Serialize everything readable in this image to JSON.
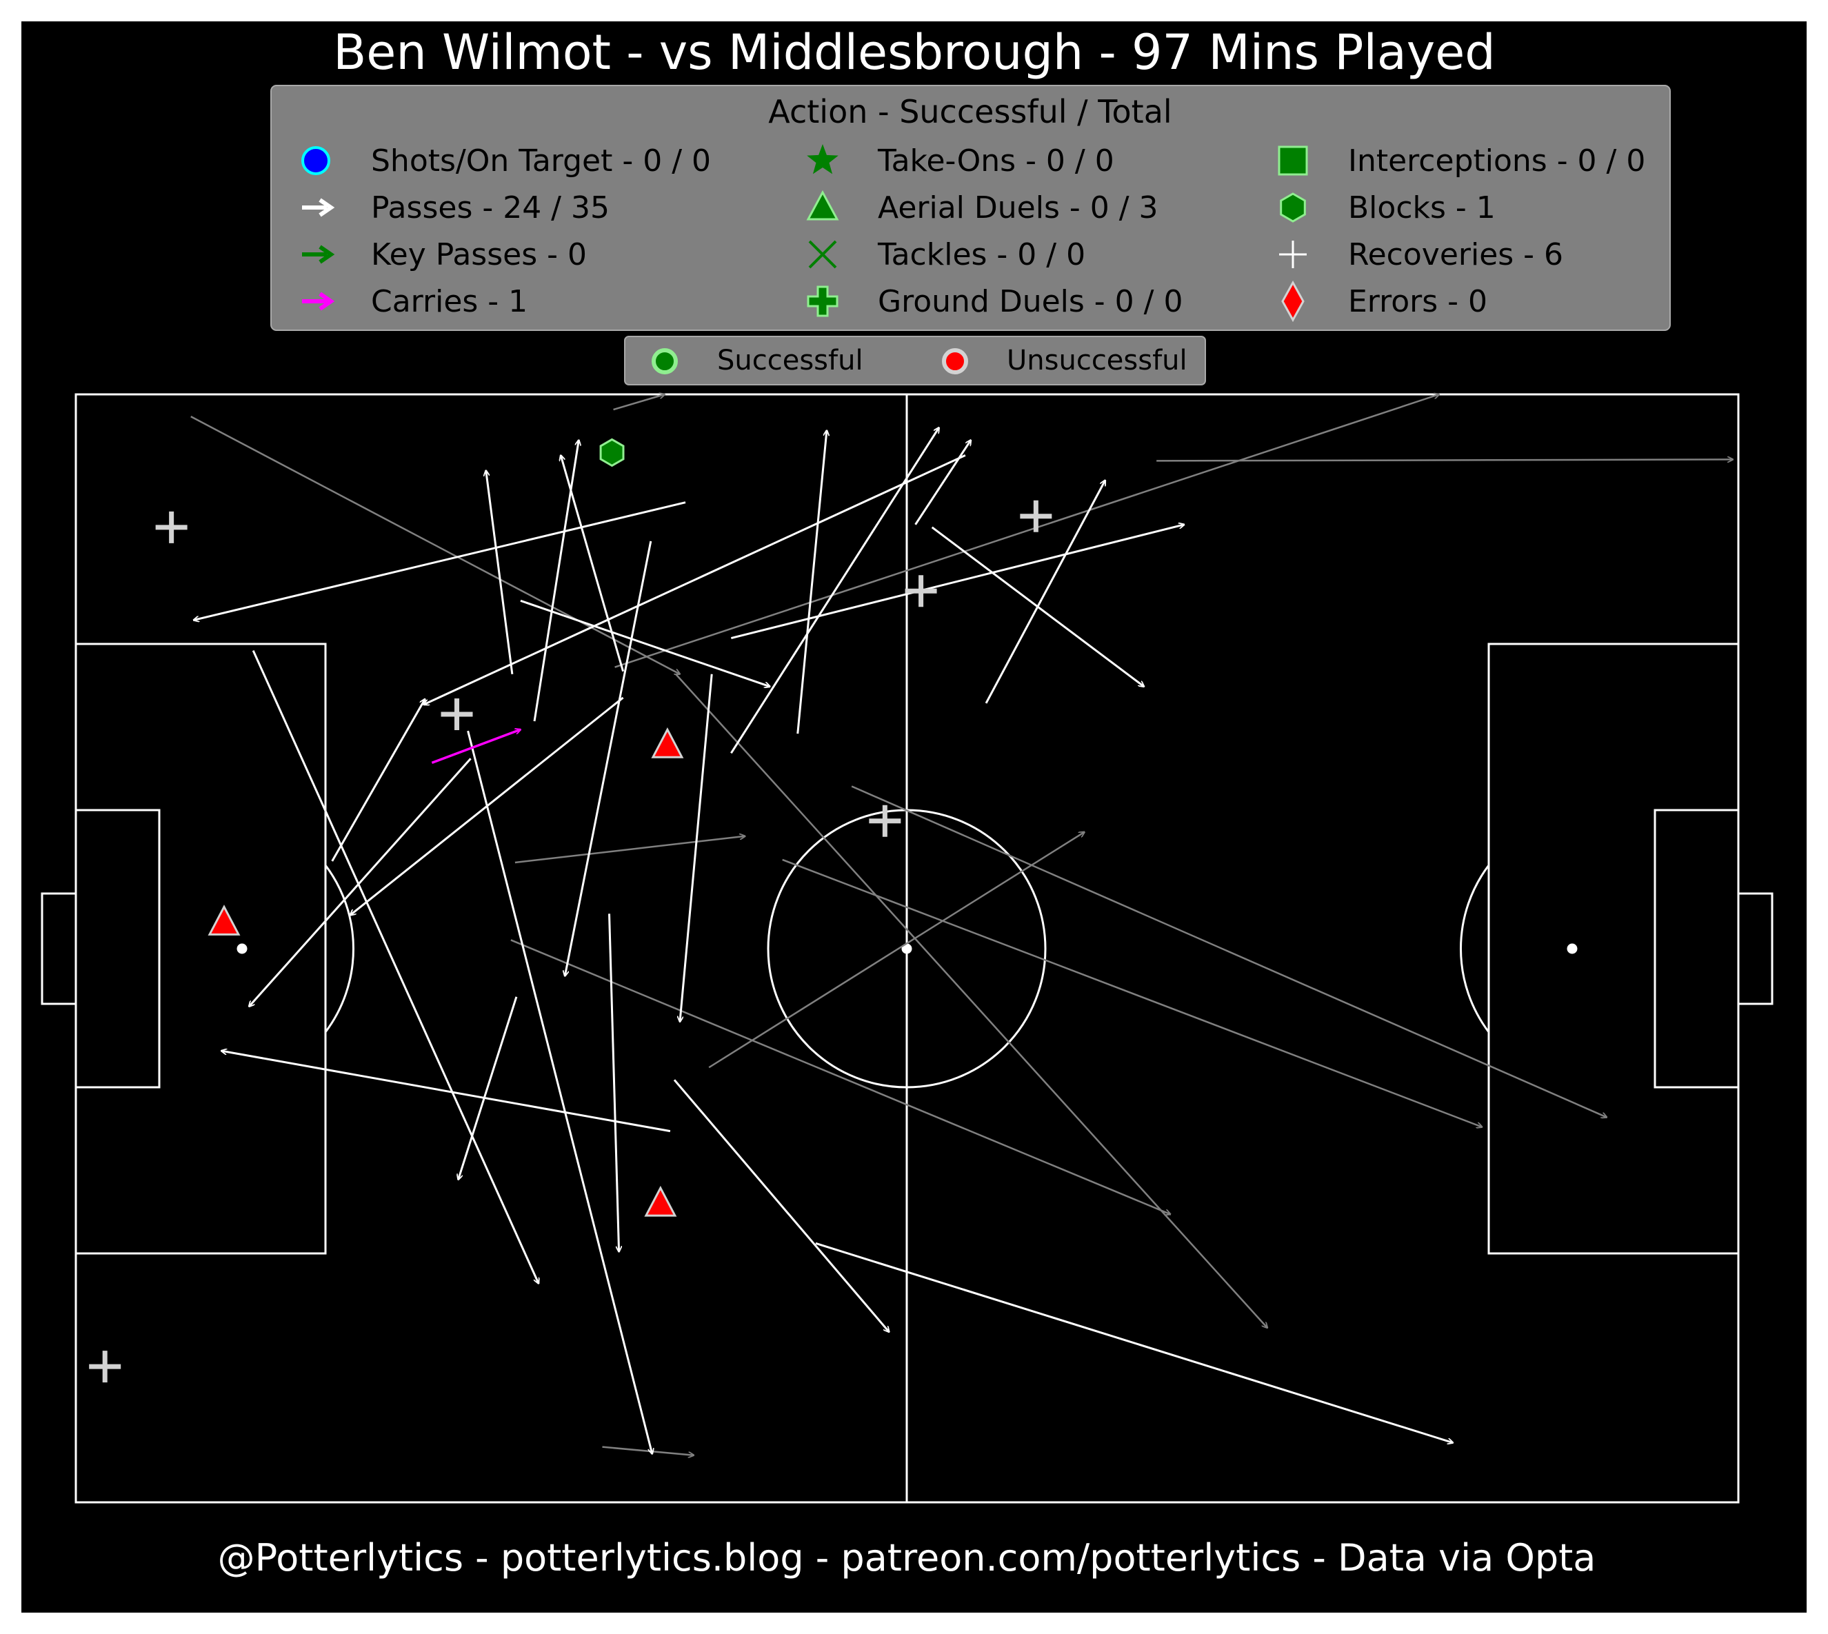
{
  "chart_data": {
    "type": "scatter",
    "title": "Ben Wilmot - vs Middlesbrough - 97 Mins Played",
    "footer": "@Potterlytics - potterlytics.blog - patreon.com/potterlytics - Data via Opta",
    "legend": {
      "title": "Action - Successful / Total",
      "items": [
        {
          "key": "shots",
          "label": "Shots/On Target - 0 / 0",
          "icon": "circle-icon",
          "color": "#0000ff"
        },
        {
          "key": "passes",
          "label": "Passes - 24 / 35",
          "icon": "arrow-icon",
          "color": "#ffffff"
        },
        {
          "key": "key_passes",
          "label": "Key Passes - 0",
          "icon": "arrow-icon",
          "color": "#008000"
        },
        {
          "key": "carries",
          "label": "Carries - 1",
          "icon": "arrow-icon",
          "color": "#ff00ff"
        },
        {
          "key": "take_ons",
          "label": "Take-Ons - 0 / 0",
          "icon": "star-icon",
          "color": "#008000"
        },
        {
          "key": "aerial_duels",
          "label": "Aerial Duels - 0 / 3",
          "icon": "triangle-icon",
          "color": "#008000"
        },
        {
          "key": "tackles",
          "label": "Tackles - 0 / 0",
          "icon": "x-icon",
          "color": "#008000"
        },
        {
          "key": "ground_duels",
          "label": "Ground Duels - 0 / 0",
          "icon": "plus-icon",
          "color": "#008000"
        },
        {
          "key": "interceptions",
          "label": "Interceptions - 0 / 0",
          "icon": "square-icon",
          "color": "#008000"
        },
        {
          "key": "blocks",
          "label": "Blocks - 1",
          "icon": "hexagon-icon",
          "color": "#008000"
        },
        {
          "key": "recoveries",
          "label": "Recoveries - 6",
          "icon": "thin-plus-icon",
          "color": "#ffffff"
        },
        {
          "key": "errors",
          "label": "Errors - 0",
          "icon": "diamond-icon",
          "color": "#ff0000"
        }
      ],
      "outcome_items": [
        {
          "key": "successful",
          "label": "Successful",
          "fill": "#008000",
          "edge": "#90ee90"
        },
        {
          "key": "unsuccessful",
          "label": "Unsuccessful",
          "fill": "#ff0000",
          "edge": "#d3d3d3"
        }
      ]
    },
    "pitch": {
      "length": 120,
      "width": 80
    },
    "colors": {
      "background": "#000000",
      "pitch_lines": "#ffffff",
      "legend_box": "#808080",
      "pass_successful": "#ffffff",
      "pass_unsuccessful": "#808080",
      "carry": "#ff00ff",
      "recovery": "#d3d3d3",
      "aerial_fill": "#ff0000",
      "block_fill": "#008000"
    },
    "passes_successful": [
      {
        "x1": 44.0,
        "y1": 7.8,
        "x2": 8.5,
        "y2": 16.3
      },
      {
        "x1": 64.2,
        "y1": 4.4,
        "x2": 25.1,
        "y2": 22.4
      },
      {
        "x1": 41.5,
        "y1": 10.6,
        "x2": 35.3,
        "y2": 42.0
      },
      {
        "x1": 31.5,
        "y1": 20.2,
        "x2": 29.6,
        "y2": 5.5
      },
      {
        "x1": 33.1,
        "y1": 23.6,
        "x2": 36.3,
        "y2": 3.3
      },
      {
        "x1": 39.5,
        "y1": 20.0,
        "x2": 35.0,
        "y2": 4.4
      },
      {
        "x1": 32.1,
        "y1": 14.9,
        "x2": 50.1,
        "y2": 21.1
      },
      {
        "x1": 52.1,
        "y1": 24.5,
        "x2": 54.2,
        "y2": 2.6
      },
      {
        "x1": 47.3,
        "y1": 25.9,
        "x2": 62.3,
        "y2": 2.4
      },
      {
        "x1": 60.6,
        "y1": 9.4,
        "x2": 64.6,
        "y2": 3.3
      },
      {
        "x1": 65.7,
        "y1": 22.3,
        "x2": 74.3,
        "y2": 6.2
      },
      {
        "x1": 47.3,
        "y1": 17.6,
        "x2": 80.0,
        "y2": 9.4
      },
      {
        "x1": 61.8,
        "y1": 9.6,
        "x2": 77.1,
        "y2": 21.1
      },
      {
        "x1": 45.9,
        "y1": 20.2,
        "x2": 43.6,
        "y2": 45.3
      },
      {
        "x1": 18.5,
        "y1": 33.7,
        "x2": 25.2,
        "y2": 22.0
      },
      {
        "x1": 39.5,
        "y1": 21.9,
        "x2": 19.8,
        "y2": 37.6
      },
      {
        "x1": 28.5,
        "y1": 26.3,
        "x2": 12.5,
        "y2": 44.2
      },
      {
        "x1": 12.8,
        "y1": 18.5,
        "x2": 33.4,
        "y2": 64.2
      },
      {
        "x1": 28.3,
        "y1": 24.3,
        "x2": 41.6,
        "y2": 76.5
      },
      {
        "x1": 31.8,
        "y1": 43.5,
        "x2": 27.6,
        "y2": 56.7
      },
      {
        "x1": 38.5,
        "y1": 37.5,
        "x2": 39.2,
        "y2": 61.9
      },
      {
        "x1": 42.9,
        "y1": 53.2,
        "x2": 10.5,
        "y2": 47.4
      },
      {
        "x1": 43.2,
        "y1": 49.5,
        "x2": 58.7,
        "y2": 67.7
      },
      {
        "x1": 53.4,
        "y1": 61.3,
        "x2": 99.4,
        "y2": 75.7
      }
    ],
    "passes_unsuccessful": [
      {
        "x1": 38.8,
        "y1": 1.1,
        "x2": 42.5,
        "y2": 0.0
      },
      {
        "x1": 8.3,
        "y1": 1.6,
        "x2": 43.6,
        "y2": 20.2
      },
      {
        "x1": 78.0,
        "y1": 4.8,
        "x2": 119.6,
        "y2": 4.7
      },
      {
        "x1": 38.9,
        "y1": 19.7,
        "x2": 98.4,
        "y2": 0.0
      },
      {
        "x1": 31.7,
        "y1": 33.8,
        "x2": 48.3,
        "y2": 31.9
      },
      {
        "x1": 43.3,
        "y1": 20.2,
        "x2": 86.0,
        "y2": 67.4
      },
      {
        "x1": 56.0,
        "y1": 28.3,
        "x2": 110.5,
        "y2": 52.2
      },
      {
        "x1": 51.0,
        "y1": 33.6,
        "x2": 101.5,
        "y2": 52.9
      },
      {
        "x1": 31.4,
        "y1": 39.4,
        "x2": 79.0,
        "y2": 59.2
      },
      {
        "x1": 45.7,
        "y1": 48.6,
        "x2": 72.8,
        "y2": 31.6
      },
      {
        "x1": 38.0,
        "y1": 76.0,
        "x2": 44.6,
        "y2": 76.6
      }
    ],
    "carries": [
      {
        "x1": 25.7,
        "y1": 26.6,
        "x2": 32.1,
        "y2": 24.2
      }
    ],
    "recoveries": [
      {
        "x": 6.9,
        "y": 9.6
      },
      {
        "x": 27.5,
        "y": 23.1
      },
      {
        "x": 61.0,
        "y": 14.2
      },
      {
        "x": 69.3,
        "y": 8.8
      },
      {
        "x": 58.4,
        "y": 30.8
      },
      {
        "x": 2.1,
        "y": 70.2
      }
    ],
    "aerial_duels_unsuccessful": [
      {
        "x": 10.7,
        "y": 38.1
      },
      {
        "x": 42.7,
        "y": 25.3
      },
      {
        "x": 42.2,
        "y": 58.4
      }
    ],
    "blocks": [
      {
        "x": 38.7,
        "y": 4.2
      }
    ]
  }
}
